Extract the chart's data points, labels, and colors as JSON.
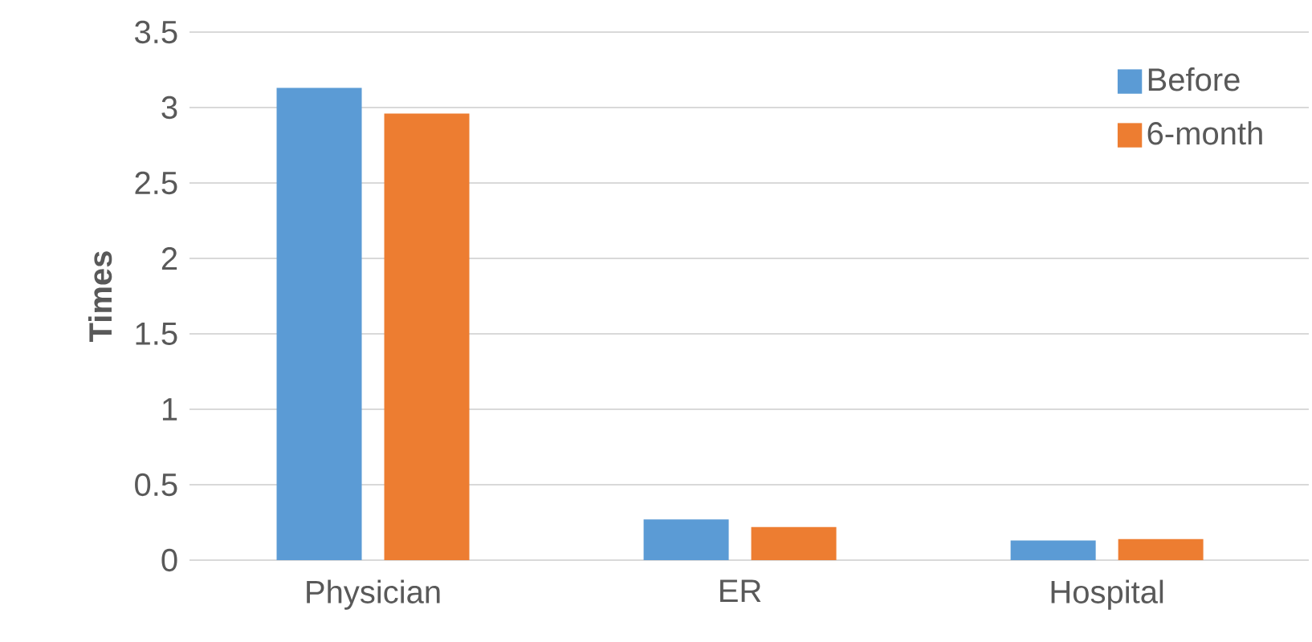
{
  "chart_data": {
    "type": "bar",
    "ylabel": "Times",
    "categories": [
      "Physician",
      "ER",
      "Hospital"
    ],
    "series": [
      {
        "name": "Before",
        "color": "#5b9bd5",
        "values": [
          3.13,
          0.27,
          0.13
        ]
      },
      {
        "name": "6-month",
        "color": "#ed7d31",
        "values": [
          2.96,
          0.22,
          0.14
        ]
      }
    ],
    "ylim": [
      0,
      3.5
    ],
    "yticks": [
      0,
      0.5,
      1,
      1.5,
      2,
      2.5,
      3,
      3.5
    ],
    "grid": "y",
    "legend": "top right"
  }
}
